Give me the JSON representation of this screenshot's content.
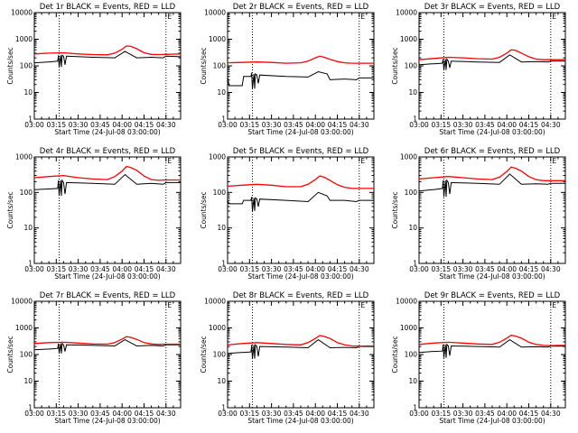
{
  "figure": {
    "x_ticks": [
      "03:00",
      "03:15",
      "03:30",
      "03:45",
      "04:00",
      "04:15",
      "04:30"
    ],
    "y_ticks": [
      "1",
      "10",
      "100",
      "1000",
      "10000"
    ],
    "xlabel": "Start Time (24-Jul-08 03:00:00)",
    "ylabel": "Counts/sec",
    "corner_mark": "E",
    "colors": {
      "events": "#000000",
      "lld": "#ff0000"
    }
  },
  "chart_data": [
    {
      "type": "line",
      "title": "Det 1r BLACK = Events, RED = LLD",
      "x_unit": "minutes after 03:00",
      "xlim": [
        0,
        100
      ],
      "ylim": [
        1,
        10000
      ],
      "y_scale": "log",
      "grid": false,
      "vlines": [
        17,
        90
      ],
      "series": [
        {
          "name": "Events",
          "color": "#000000",
          "x": [
            0,
            9,
            10,
            16,
            16.5,
            17,
            18,
            18.5,
            19,
            20,
            21,
            22,
            40,
            55,
            62,
            70,
            80,
            88,
            90,
            100
          ],
          "y": [
            130,
            140,
            140,
            150,
            250,
            90,
            250,
            90,
            250,
            230,
            110,
            230,
            210,
            200,
            350,
            200,
            210,
            200,
            230,
            220
          ]
        },
        {
          "name": "LLD",
          "color": "#ff0000",
          "x": [
            0,
            10,
            20,
            30,
            40,
            50,
            55,
            60,
            63,
            66,
            70,
            75,
            80,
            85,
            90,
            95,
            100
          ],
          "y": [
            280,
            300,
            310,
            280,
            265,
            260,
            300,
            420,
            560,
            540,
            440,
            310,
            270,
            265,
            270,
            275,
            280
          ]
        }
      ]
    },
    {
      "type": "line",
      "title": "Det 2r BLACK = Events, RED = LLD",
      "x_unit": "minutes after 03:00",
      "xlim": [
        0,
        100
      ],
      "ylim": [
        1,
        10000
      ],
      "y_scale": "log",
      "grid": false,
      "vlines": [
        17,
        90
      ],
      "series": [
        {
          "name": "Events",
          "color": "#000000",
          "x": [
            0,
            1,
            10,
            11,
            16,
            16.5,
            17,
            18,
            18.5,
            19,
            20,
            21,
            22,
            40,
            55,
            62,
            68,
            70,
            80,
            88,
            90,
            100
          ],
          "y": [
            40,
            18,
            18,
            40,
            40,
            55,
            14,
            50,
            14,
            50,
            45,
            22,
            45,
            40,
            38,
            60,
            50,
            30,
            32,
            30,
            35,
            35
          ]
        },
        {
          "name": "LLD",
          "color": "#ff0000",
          "x": [
            0,
            10,
            20,
            30,
            40,
            50,
            55,
            60,
            63,
            66,
            70,
            75,
            80,
            85,
            90,
            95,
            100
          ],
          "y": [
            130,
            135,
            140,
            135,
            125,
            130,
            150,
            200,
            230,
            210,
            175,
            145,
            130,
            125,
            125,
            125,
            125
          ]
        }
      ]
    },
    {
      "type": "line",
      "title": "Det 3r BLACK = Events, RED = LLD",
      "x_unit": "minutes after 03:00",
      "xlim": [
        0,
        100
      ],
      "ylim": [
        1,
        10000
      ],
      "y_scale": "log",
      "grid": false,
      "vlines": [
        17,
        90
      ],
      "series": [
        {
          "name": "Events",
          "color": "#000000",
          "x": [
            0,
            9,
            10,
            16,
            16.5,
            17,
            18,
            18.5,
            19,
            20,
            21,
            22,
            40,
            55,
            62,
            70,
            80,
            88,
            90,
            100
          ],
          "y": [
            110,
            120,
            120,
            125,
            180,
            70,
            180,
            70,
            180,
            150,
            85,
            150,
            140,
            135,
            260,
            140,
            145,
            140,
            150,
            150
          ]
        },
        {
          "name": "LLD",
          "color": "#ff0000",
          "x": [
            0,
            10,
            20,
            30,
            40,
            50,
            55,
            60,
            63,
            66,
            70,
            75,
            80,
            85,
            90,
            95,
            100
          ],
          "y": [
            170,
            190,
            210,
            200,
            185,
            180,
            210,
            300,
            400,
            380,
            300,
            220,
            180,
            170,
            170,
            170,
            170
          ]
        }
      ]
    },
    {
      "type": "line",
      "title": "Det 4r BLACK = Events, RED = LLD",
      "x_unit": "minutes after 03:00",
      "xlim": [
        0,
        100
      ],
      "ylim": [
        1,
        1000
      ],
      "y_scale": "log",
      "grid": false,
      "vlines": [
        17,
        90
      ],
      "series": [
        {
          "name": "Events",
          "color": "#000000",
          "x": [
            0,
            9,
            10,
            16,
            16.5,
            17,
            18,
            18.5,
            19,
            20,
            21,
            22,
            40,
            55,
            62,
            70,
            80,
            88,
            90,
            100
          ],
          "y": [
            120,
            125,
            125,
            130,
            220,
            80,
            220,
            80,
            220,
            190,
            90,
            190,
            180,
            170,
            320,
            170,
            180,
            170,
            190,
            190
          ]
        },
        {
          "name": "LLD",
          "color": "#ff0000",
          "x": [
            0,
            10,
            20,
            30,
            40,
            50,
            55,
            60,
            63,
            66,
            70,
            75,
            80,
            85,
            90,
            95,
            100
          ],
          "y": [
            260,
            280,
            300,
            260,
            240,
            230,
            280,
            400,
            540,
            500,
            420,
            290,
            230,
            220,
            225,
            225,
            225
          ]
        }
      ]
    },
    {
      "type": "line",
      "title": "Det 5r BLACK = Events, RED = LLD",
      "x_unit": "minutes after 03:00",
      "xlim": [
        0,
        100
      ],
      "ylim": [
        1,
        1000
      ],
      "y_scale": "log",
      "grid": false,
      "vlines": [
        17,
        90
      ],
      "series": [
        {
          "name": "Events",
          "color": "#000000",
          "x": [
            0,
            1,
            10,
            11,
            16,
            16.5,
            17,
            18,
            18.5,
            19,
            20,
            21,
            22,
            40,
            55,
            62,
            68,
            70,
            80,
            88,
            90,
            100
          ],
          "y": [
            60,
            48,
            48,
            60,
            60,
            75,
            30,
            70,
            30,
            70,
            65,
            40,
            65,
            60,
            55,
            100,
            80,
            60,
            60,
            55,
            60,
            60
          ]
        },
        {
          "name": "LLD",
          "color": "#ff0000",
          "x": [
            0,
            10,
            20,
            30,
            40,
            50,
            55,
            60,
            63,
            66,
            70,
            75,
            80,
            85,
            90,
            95,
            100
          ],
          "y": [
            150,
            160,
            170,
            160,
            145,
            145,
            170,
            230,
            290,
            270,
            220,
            165,
            140,
            130,
            130,
            130,
            130
          ]
        }
      ]
    },
    {
      "type": "line",
      "title": "Det 6r BLACK = Events, RED = LLD",
      "x_unit": "minutes after 03:00",
      "xlim": [
        0,
        100
      ],
      "ylim": [
        1,
        1000
      ],
      "y_scale": "log",
      "grid": false,
      "vlines": [
        17,
        90
      ],
      "series": [
        {
          "name": "Events",
          "color": "#000000",
          "x": [
            0,
            9,
            10,
            16,
            16.5,
            17,
            18,
            18.5,
            19,
            20,
            21,
            22,
            40,
            55,
            62,
            70,
            80,
            88,
            90,
            100
          ],
          "y": [
            110,
            120,
            120,
            130,
            220,
            75,
            220,
            75,
            220,
            190,
            90,
            190,
            180,
            170,
            330,
            170,
            175,
            170,
            180,
            180
          ]
        },
        {
          "name": "LLD",
          "color": "#ff0000",
          "x": [
            0,
            10,
            20,
            30,
            40,
            50,
            55,
            60,
            63,
            66,
            70,
            75,
            80,
            85,
            90,
            95,
            100
          ],
          "y": [
            240,
            260,
            280,
            260,
            240,
            230,
            270,
            390,
            520,
            480,
            400,
            280,
            230,
            215,
            215,
            215,
            215
          ]
        }
      ]
    },
    {
      "type": "line",
      "title": "Det 7r BLACK = Events, RED = LLD",
      "x_unit": "minutes after 03:00",
      "xlim": [
        0,
        100
      ],
      "ylim": [
        1,
        10000
      ],
      "y_scale": "log",
      "grid": false,
      "vlines": [
        17,
        90
      ],
      "series": [
        {
          "name": "Events",
          "color": "#000000",
          "x": [
            0,
            9,
            10,
            16,
            16.5,
            17,
            18,
            18.5,
            19,
            20,
            21,
            22,
            40,
            55,
            62,
            70,
            80,
            88,
            90,
            100
          ],
          "y": [
            150,
            160,
            160,
            170,
            260,
            110,
            260,
            110,
            260,
            230,
            130,
            230,
            220,
            210,
            360,
            210,
            220,
            210,
            230,
            230
          ]
        },
        {
          "name": "LLD",
          "color": "#ff0000",
          "x": [
            0,
            10,
            20,
            30,
            40,
            50,
            55,
            60,
            63,
            66,
            70,
            75,
            80,
            85,
            90,
            95,
            100
          ],
          "y": [
            260,
            280,
            290,
            270,
            250,
            245,
            280,
            380,
            470,
            440,
            370,
            280,
            250,
            240,
            245,
            245,
            245
          ]
        }
      ]
    },
    {
      "type": "line",
      "title": "Det 8r BLACK = Events, RED = LLD",
      "x_unit": "minutes after 03:00",
      "xlim": [
        0,
        100
      ],
      "ylim": [
        1,
        10000
      ],
      "y_scale": "log",
      "grid": false,
      "vlines": [
        17,
        90
      ],
      "series": [
        {
          "name": "Events",
          "color": "#000000",
          "x": [
            0,
            9,
            10,
            16,
            16.5,
            17,
            18,
            18.5,
            19,
            20,
            21,
            22,
            40,
            55,
            62,
            70,
            80,
            88,
            90,
            100
          ],
          "y": [
            110,
            120,
            120,
            125,
            230,
            70,
            230,
            70,
            230,
            200,
            85,
            200,
            190,
            180,
            360,
            180,
            185,
            180,
            200,
            200
          ]
        },
        {
          "name": "LLD",
          "color": "#ff0000",
          "x": [
            0,
            10,
            20,
            30,
            40,
            50,
            55,
            60,
            63,
            66,
            70,
            75,
            80,
            85,
            90,
            95,
            100
          ],
          "y": [
            230,
            260,
            280,
            260,
            240,
            230,
            280,
            400,
            520,
            480,
            400,
            280,
            230,
            210,
            205,
            210,
            210
          ]
        }
      ]
    },
    {
      "type": "line",
      "title": "Det 9r BLACK = Events, RED = LLD",
      "x_unit": "minutes after 03:00",
      "xlim": [
        0,
        100
      ],
      "ylim": [
        1,
        10000
      ],
      "y_scale": "log",
      "grid": false,
      "vlines": [
        17,
        90
      ],
      "series": [
        {
          "name": "Events",
          "color": "#000000",
          "x": [
            0,
            9,
            10,
            16,
            16.5,
            17,
            18,
            18.5,
            19,
            20,
            21,
            22,
            40,
            55,
            62,
            70,
            80,
            88,
            90,
            100
          ],
          "y": [
            120,
            130,
            130,
            135,
            240,
            75,
            240,
            75,
            240,
            210,
            90,
            210,
            200,
            190,
            360,
            190,
            195,
            190,
            205,
            205
          ]
        },
        {
          "name": "LLD",
          "color": "#ff0000",
          "x": [
            0,
            10,
            20,
            30,
            40,
            50,
            55,
            60,
            63,
            66,
            70,
            75,
            80,
            85,
            90,
            95,
            100
          ],
          "y": [
            240,
            270,
            290,
            270,
            250,
            240,
            290,
            410,
            530,
            490,
            410,
            290,
            240,
            220,
            215,
            220,
            220
          ]
        }
      ]
    }
  ]
}
